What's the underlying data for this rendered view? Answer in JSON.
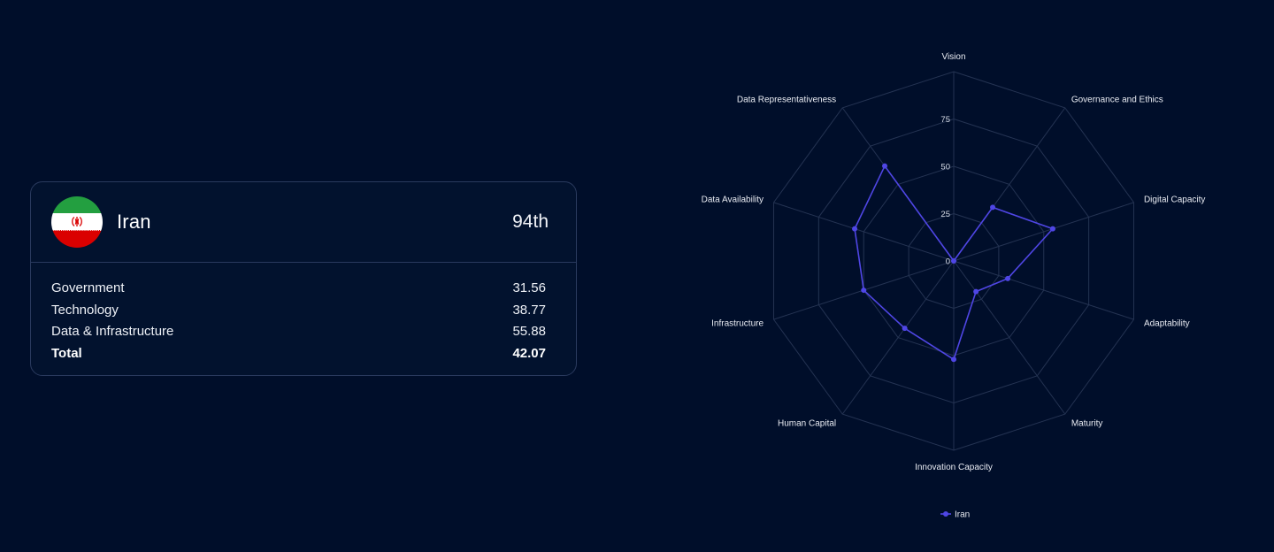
{
  "card": {
    "country": "Iran",
    "rank": "94th",
    "flag": {
      "colors": {
        "green": "#239f40",
        "white": "#ffffff",
        "red": "#da0000",
        "emblem": "#da0000"
      }
    },
    "rows": [
      {
        "label": "Government",
        "value": "31.56"
      },
      {
        "label": "Technology",
        "value": "38.77"
      },
      {
        "label": "Data & Infrastructure",
        "value": "55.88"
      }
    ],
    "total": {
      "label": "Total",
      "value": "42.07"
    }
  },
  "chart_data": {
    "type": "radar",
    "axes": [
      "Vision",
      "Governance and Ethics",
      "Digital Capacity",
      "Adaptability",
      "Maturity",
      "Innovation Capacity",
      "Human Capital",
      "Infrastructure",
      "Data Availability",
      "Data Representativeness"
    ],
    "r_ticks": [
      "0",
      "25",
      "50",
      "75"
    ],
    "r_range": [
      0,
      100
    ],
    "grid": true,
    "legend_position": "bottom",
    "series": [
      {
        "name": "Iran",
        "color": "#4f46e5",
        "values": [
          0,
          35,
          55,
          30,
          20,
          52,
          44,
          50,
          55,
          62
        ]
      }
    ]
  }
}
